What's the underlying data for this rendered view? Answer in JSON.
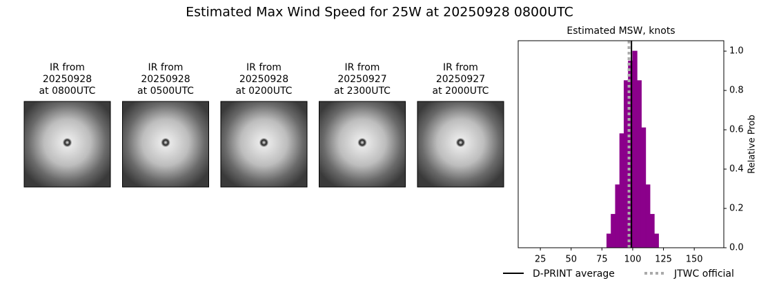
{
  "title": "Estimated Max Wind Speed for 25W at 20250928 0800UTC",
  "panels": [
    {
      "lines": [
        "IR from",
        "20250928",
        "at 0800UTC"
      ]
    },
    {
      "lines": [
        "IR from",
        "20250928",
        "at 0500UTC"
      ]
    },
    {
      "lines": [
        "IR from",
        "20250928",
        "at 0200UTC"
      ]
    },
    {
      "lines": [
        "IR from",
        "20250927",
        "at 2300UTC"
      ]
    },
    {
      "lines": [
        "IR from",
        "20250927",
        "at 2000UTC"
      ]
    }
  ],
  "chart_data": {
    "type": "histogram",
    "title": "Estimated MSW, knots",
    "y_label": "Relative Prob",
    "color": "#8b008b",
    "bins": [
      16,
      19.5,
      23,
      26.5,
      30,
      33.5,
      37,
      40.5,
      44,
      47.5,
      51,
      54.5,
      58,
      61.5,
      65,
      68.5,
      72,
      75.5,
      79,
      82.5,
      86,
      89.5,
      93,
      96.5,
      100,
      103.5,
      107,
      110.5,
      114,
      117.5,
      121,
      124.5,
      128,
      131.5,
      135,
      138.5,
      142,
      145.5,
      149,
      152.5,
      156,
      159.5,
      163,
      166.5,
      170
    ],
    "values": [
      0,
      0,
      0,
      0,
      0,
      0,
      0,
      0,
      0,
      0,
      0,
      0,
      0,
      0,
      0,
      0,
      0,
      0,
      0.07,
      0.17,
      0.32,
      0.58,
      0.85,
      0.95,
      1.0,
      0.85,
      0.61,
      0.32,
      0.17,
      0.07,
      0,
      0,
      0,
      0,
      0,
      0,
      0,
      0,
      0,
      0,
      0,
      0,
      0,
      0
    ],
    "xlim": [
      7,
      174
    ],
    "xticks": [
      25,
      50,
      75,
      100,
      125,
      150
    ],
    "ylim": [
      0,
      1.053
    ],
    "yticks": [
      {
        "value": 0,
        "label": "0.0"
      },
      0.2,
      0.4,
      0.6,
      0.8,
      {
        "value": 1,
        "label": "1.0"
      }
    ],
    "lines": [
      {
        "name": "D-PRINT average",
        "value": 99,
        "color": "#000000",
        "style": "solid"
      },
      {
        "name": "JTWC official",
        "value": 97,
        "color": "#aaaaaa",
        "style": "dotted"
      }
    ]
  }
}
